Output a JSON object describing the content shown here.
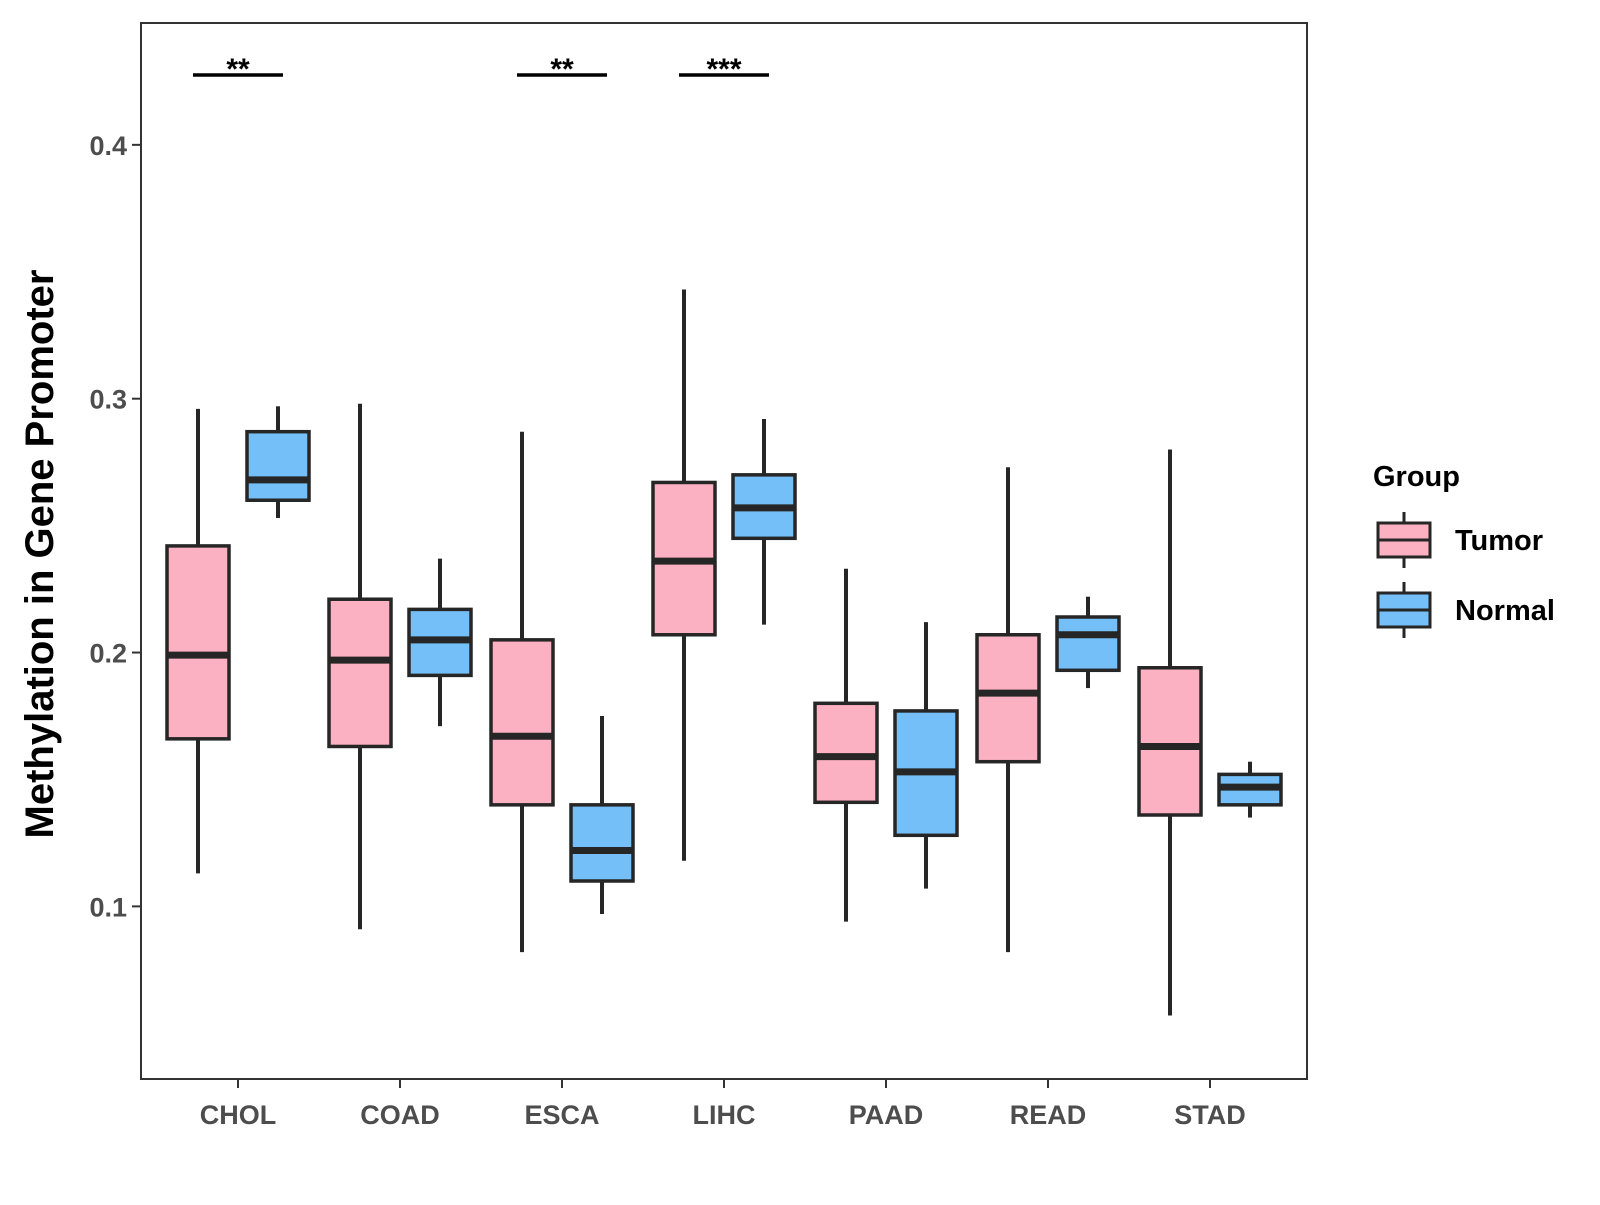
{
  "chart_data": {
    "type": "boxplot",
    "title": "",
    "xlabel": "",
    "ylabel": "Methylation in Gene Promoter",
    "ylim": [
      0.032,
      0.448
    ],
    "yticks": [
      0.1,
      0.2,
      0.3,
      0.4
    ],
    "ytick_labels": [
      "0.1",
      "0.2",
      "0.3",
      "0.4"
    ],
    "grid": false,
    "legend": {
      "title": "Group",
      "position": "right",
      "entries": [
        {
          "name": "Tumor",
          "color": "#FBB1C1"
        },
        {
          "name": "Normal",
          "color": "#74BFF7"
        }
      ]
    },
    "categories": [
      "CHOL",
      "COAD",
      "ESCA",
      "LIHC",
      "PAAD",
      "READ",
      "STAD"
    ],
    "series": [
      {
        "name": "Tumor",
        "color": "#FBB1C1",
        "boxes": [
          {
            "min": 0.113,
            "q1": 0.166,
            "median": 0.199,
            "q3": 0.242,
            "max": 0.296
          },
          {
            "min": 0.091,
            "q1": 0.163,
            "median": 0.197,
            "q3": 0.221,
            "max": 0.298
          },
          {
            "min": 0.082,
            "q1": 0.14,
            "median": 0.167,
            "q3": 0.205,
            "max": 0.287
          },
          {
            "min": 0.118,
            "q1": 0.207,
            "median": 0.236,
            "q3": 0.267,
            "max": 0.343
          },
          {
            "min": 0.094,
            "q1": 0.141,
            "median": 0.159,
            "q3": 0.18,
            "max": 0.233
          },
          {
            "min": 0.082,
            "q1": 0.157,
            "median": 0.184,
            "q3": 0.207,
            "max": 0.273
          },
          {
            "min": 0.057,
            "q1": 0.136,
            "median": 0.163,
            "q3": 0.194,
            "max": 0.28
          }
        ]
      },
      {
        "name": "Normal",
        "color": "#74BFF7",
        "boxes": [
          {
            "min": 0.253,
            "q1": 0.26,
            "median": 0.268,
            "q3": 0.287,
            "max": 0.297
          },
          {
            "min": 0.171,
            "q1": 0.191,
            "median": 0.205,
            "q3": 0.217,
            "max": 0.237
          },
          {
            "min": 0.097,
            "q1": 0.11,
            "median": 0.122,
            "q3": 0.14,
            "max": 0.175
          },
          {
            "min": 0.211,
            "q1": 0.245,
            "median": 0.257,
            "q3": 0.27,
            "max": 0.292
          },
          {
            "min": 0.107,
            "q1": 0.128,
            "median": 0.153,
            "q3": 0.177,
            "max": 0.212
          },
          {
            "min": 0.186,
            "q1": 0.193,
            "median": 0.207,
            "q3": 0.214,
            "max": 0.222
          },
          {
            "min": 0.135,
            "q1": 0.14,
            "median": 0.147,
            "q3": 0.152,
            "max": 0.157
          }
        ]
      }
    ],
    "annotations": [
      {
        "category": "CHOL",
        "label": "**"
      },
      {
        "category": "ESCA",
        "label": "**"
      },
      {
        "category": "LIHC",
        "label": "***"
      }
    ]
  }
}
